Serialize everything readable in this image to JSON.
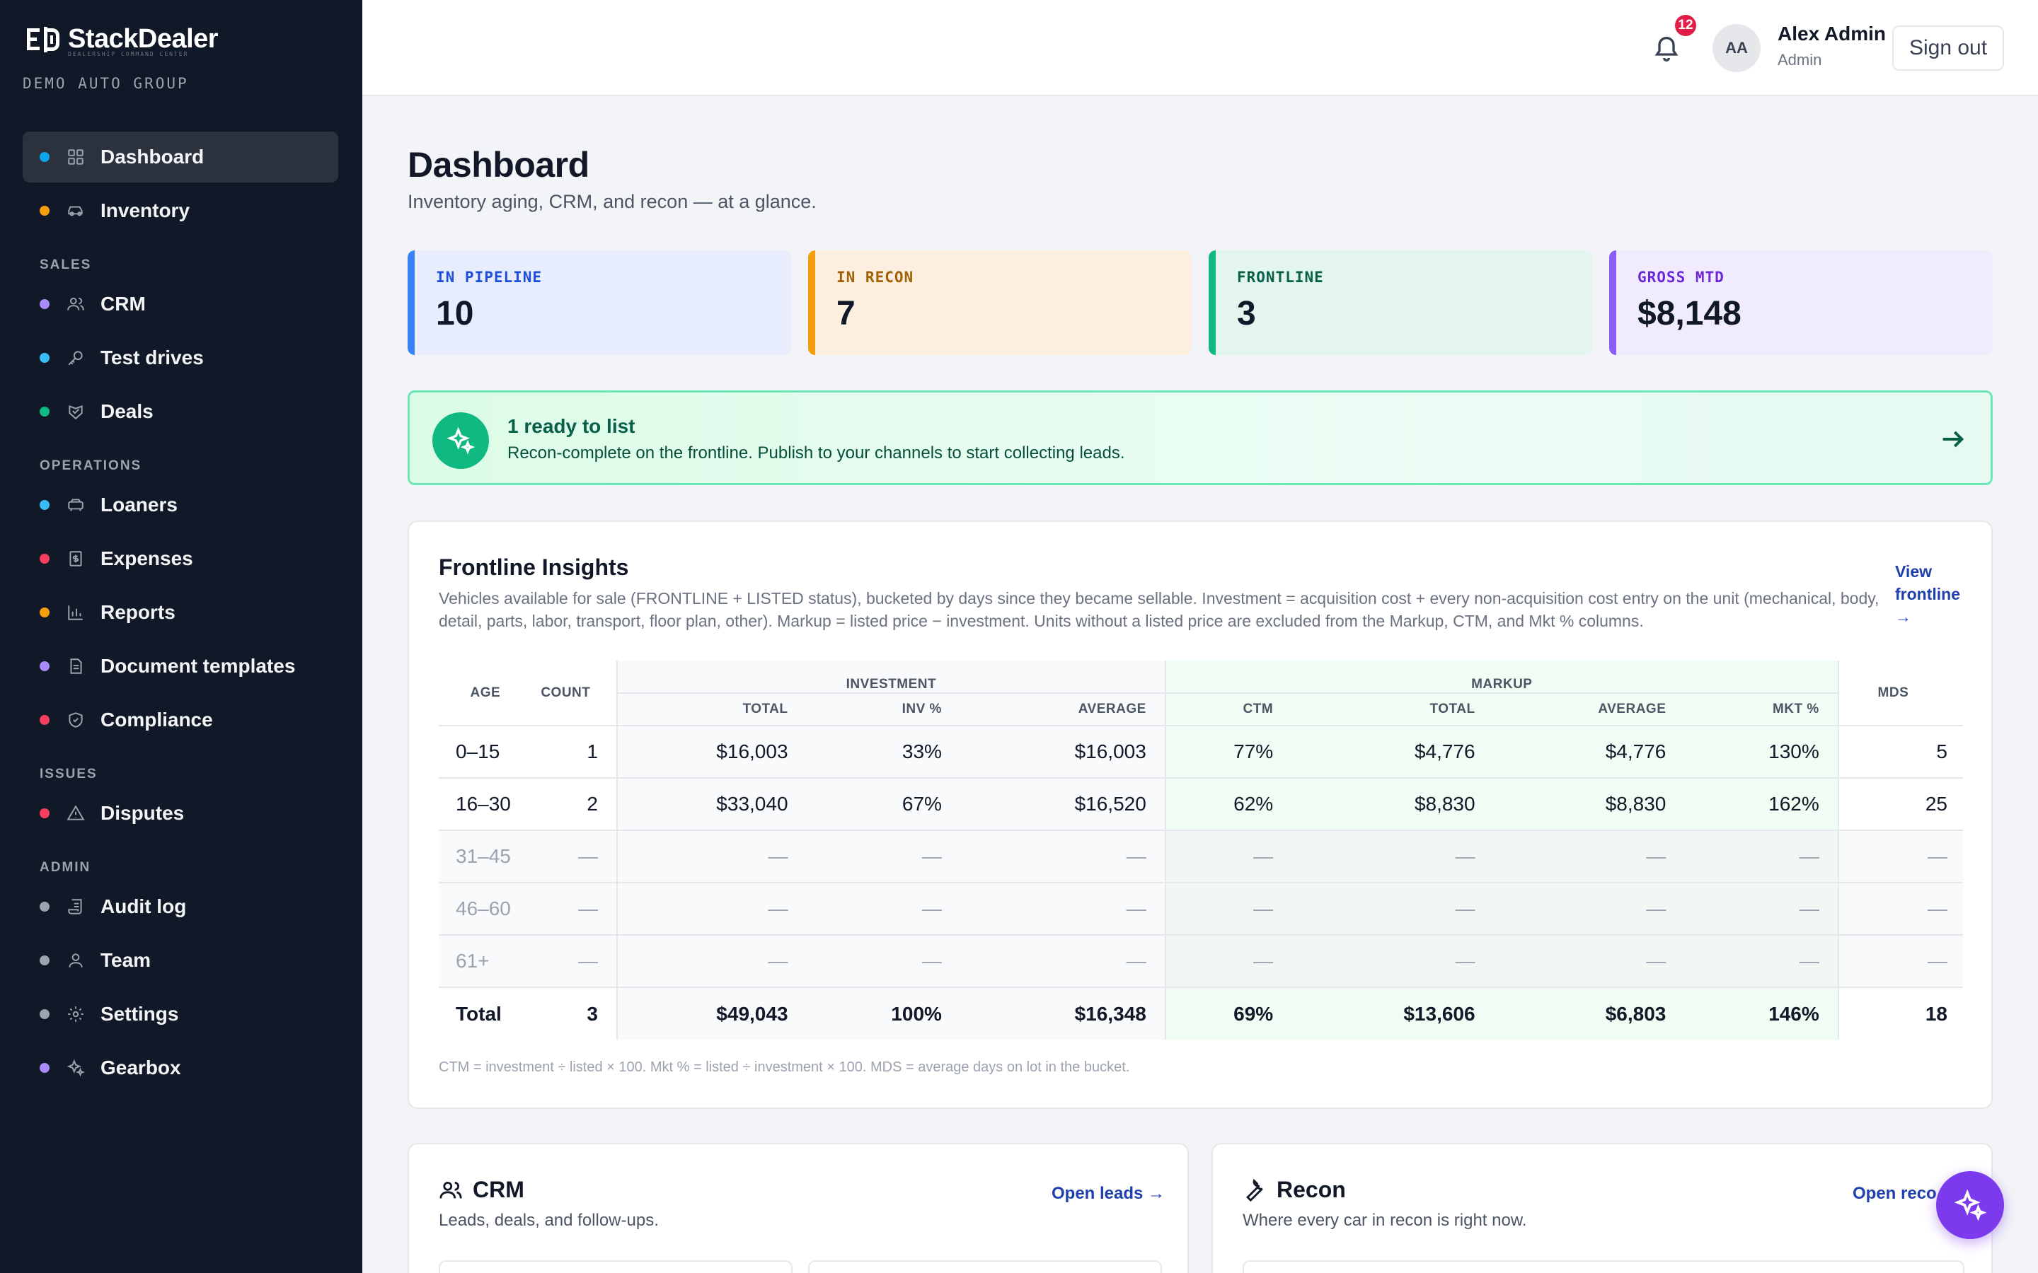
{
  "brand": {
    "name": "StackDealer",
    "tagline": "DEALERSHIP COMMAND CENTER",
    "org": "DEMO AUTO GROUP"
  },
  "nav": {
    "dashboard": {
      "label": "Dashboard",
      "dot": "#0ea5e9"
    },
    "inventory": {
      "label": "Inventory",
      "dot": "#f59e0b"
    },
    "section_sales": "SALES",
    "crm": {
      "label": "CRM",
      "dot": "#a78bfa"
    },
    "test_drives": {
      "label": "Test drives",
      "dot": "#38bdf8"
    },
    "deals": {
      "label": "Deals",
      "dot": "#10b981"
    },
    "section_operations": "OPERATIONS",
    "loaners": {
      "label": "Loaners",
      "dot": "#38bdf8"
    },
    "expenses": {
      "label": "Expenses",
      "dot": "#f43f5e"
    },
    "reports": {
      "label": "Reports",
      "dot": "#f59e0b"
    },
    "document_templates": {
      "label": "Document templates",
      "dot": "#a78bfa"
    },
    "compliance": {
      "label": "Compliance",
      "dot": "#f43f5e"
    },
    "section_issues": "ISSUES",
    "disputes": {
      "label": "Disputes",
      "dot": "#f43f5e"
    },
    "section_admin": "ADMIN",
    "audit_log": {
      "label": "Audit log",
      "dot": "#9ca3af"
    },
    "team": {
      "label": "Team",
      "dot": "#9ca3af"
    },
    "settings": {
      "label": "Settings",
      "dot": "#9ca3af"
    },
    "gearbox": {
      "label": "Gearbox",
      "dot": "#a78bfa"
    }
  },
  "topbar": {
    "notification_count": "12",
    "avatar_initials": "AA",
    "user_name": "Alex Admin",
    "user_role": "Admin",
    "sign_out": "Sign out"
  },
  "page": {
    "title": "Dashboard",
    "subtitle": "Inventory aging, CRM, and recon — at a glance."
  },
  "stats": [
    {
      "label": "IN PIPELINE",
      "value": "10",
      "accent": "#3b82f6",
      "bg": "#e8edfd",
      "label_color": "#1d4ed8"
    },
    {
      "label": "IN RECON",
      "value": "7",
      "accent": "#f59e0b",
      "bg": "#fcefe0",
      "label_color": "#a16207"
    },
    {
      "label": "FRONTLINE",
      "value": "3",
      "accent": "#10b981",
      "bg": "#e3f5ee",
      "label_color": "#065f46"
    },
    {
      "label": "GROSS MTD",
      "value": "$8,148",
      "accent": "#8b5cf6",
      "bg": "#f1ecfd",
      "label_color": "#6d28d9"
    }
  ],
  "ready": {
    "title": "1 ready to list",
    "description": "Recon-complete on the frontline. Publish to your channels to start collecting leads."
  },
  "frontline": {
    "title": "Frontline Insights",
    "description": "Vehicles available for sale (FRONTLINE + LISTED status), bucketed by days since they became sellable. Investment = acquisition cost + every non-acquisition cost entry on the unit (mechanical, body, detail, parts, labor, transport, floor plan, other). Markup = listed price − investment. Units without a listed price are excluded from the Markup, CTM, and Mkt % columns.",
    "view_link": "View frontline →",
    "group_investment": "INVESTMENT",
    "group_markup": "MARKUP",
    "columns": {
      "age": "AGE",
      "count": "COUNT",
      "inv_total": "TOTAL",
      "inv_pct": "INV %",
      "inv_avg": "AVERAGE",
      "ctm": "CTM",
      "mk_total": "TOTAL",
      "mk_avg": "AVERAGE",
      "mkt_pct": "MKT %",
      "mds": "MDS"
    },
    "rows": [
      [
        "0–15",
        "1",
        "$16,003",
        "33%",
        "$16,003",
        "77%",
        "$4,776",
        "$4,776",
        "130%",
        "5"
      ],
      [
        "16–30",
        "2",
        "$33,040",
        "67%",
        "$16,520",
        "62%",
        "$8,830",
        "$8,830",
        "162%",
        "25"
      ],
      [
        "31–45",
        "—",
        "—",
        "—",
        "—",
        "—",
        "—",
        "—",
        "—",
        "—"
      ],
      [
        "46–60",
        "—",
        "—",
        "—",
        "—",
        "—",
        "—",
        "—",
        "—",
        "—"
      ],
      [
        "61+",
        "—",
        "—",
        "—",
        "—",
        "—",
        "—",
        "—",
        "—",
        "—"
      ]
    ],
    "total": [
      "Total",
      "3",
      "$49,043",
      "100%",
      "$16,348",
      "69%",
      "$13,606",
      "$6,803",
      "146%",
      "18"
    ],
    "note": "CTM = investment ÷ listed × 100. Mkt % = listed ÷ investment × 100. MDS = average days on lot in the bucket."
  },
  "crm_card": {
    "title": "CRM",
    "description": "Leads, deals, and follow-ups.",
    "link": "Open leads →"
  },
  "recon_card": {
    "title": "Recon",
    "description": "Where every car in recon is right now.",
    "link": "Open reco"
  }
}
